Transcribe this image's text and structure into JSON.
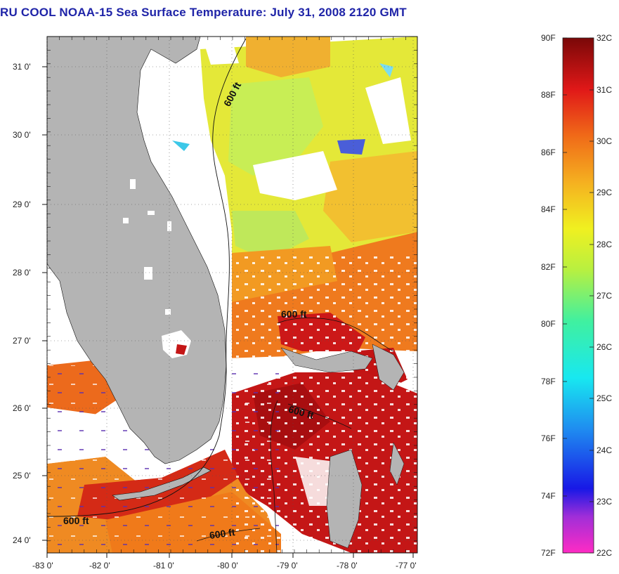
{
  "title": "RU COOL  NOAA-15  Sea Surface Temperature:  July 31, 2008 2120 GMT",
  "map": {
    "lat_ticks": [
      "31 0'",
      "30 0'",
      "29 0'",
      "28 0'",
      "27 0'",
      "26 0'",
      "25 0'",
      "24 0'"
    ],
    "lon_ticks": [
      "-83 0'",
      "-82 0'",
      "-81 0'",
      "-80 0'",
      "-79 0'",
      "-78 0'",
      "-77 0'"
    ],
    "contour_labels": [
      "600 ft",
      "600 ft",
      "600 ft",
      "600 ft",
      "600 ft"
    ]
  },
  "colorbar": {
    "fahrenheit": [
      "90F",
      "88F",
      "86F",
      "84F",
      "82F",
      "80F",
      "78F",
      "76F",
      "74F",
      "72F"
    ],
    "celsius": [
      "32C",
      "31C",
      "30C",
      "29C",
      "28C",
      "27C",
      "26C",
      "25C",
      "24C",
      "23C",
      "22C"
    ]
  },
  "colors": {
    "title": "#1f24a8",
    "land": "#b2b2b2",
    "warm_red": "#c81414",
    "orange": "#f07818",
    "yellow": "#e8e020",
    "green_yellow": "#c8f040"
  }
}
